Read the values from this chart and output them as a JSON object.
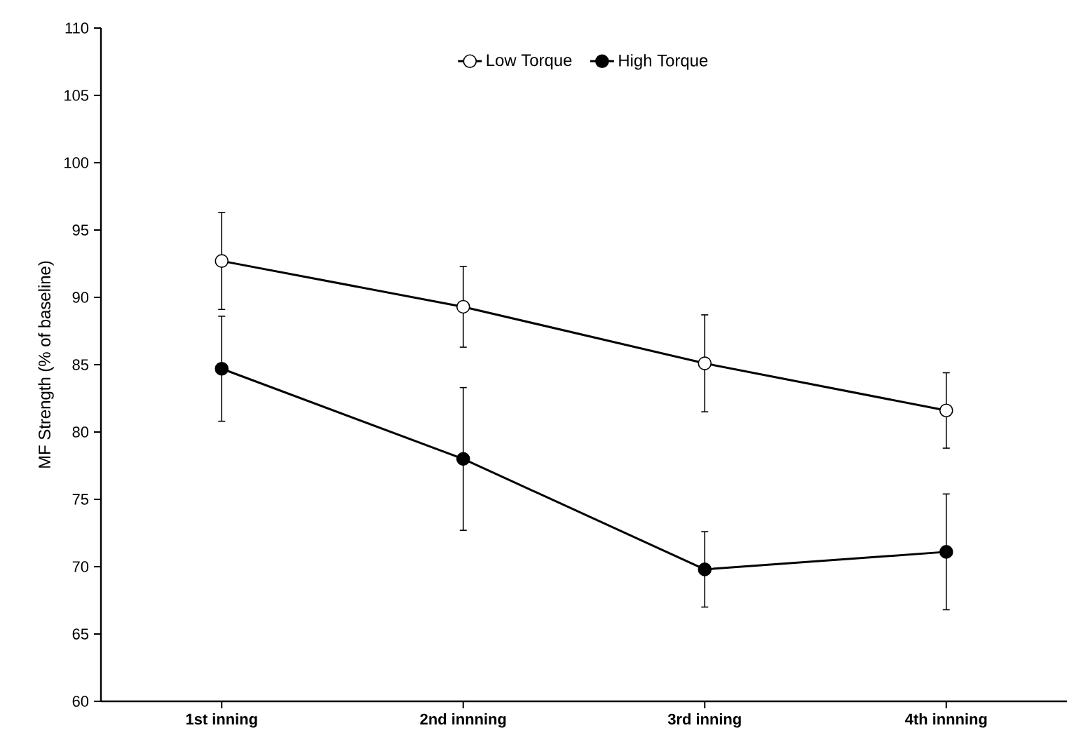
{
  "chart_data": {
    "type": "line",
    "ylabel": "MF Strength (% of baseline)",
    "categories": [
      "1st inning",
      "2nd innning",
      "3rd inning",
      "4th innning"
    ],
    "series": [
      {
        "name": "Low Torque",
        "color": "#ffffff",
        "values": [
          92.7,
          89.3,
          85.1,
          81.6
        ],
        "errors": [
          3.6,
          3.0,
          3.6,
          2.8
        ]
      },
      {
        "name": "High Torque",
        "color": "#000000",
        "values": [
          84.7,
          78.0,
          69.8,
          71.1
        ],
        "errors": [
          3.9,
          5.3,
          2.8,
          4.3
        ]
      }
    ],
    "ylim": [
      60,
      110
    ],
    "yticks": [
      60,
      65,
      70,
      75,
      80,
      85,
      90,
      95,
      100,
      105,
      110
    ],
    "grid": false,
    "legend": "top",
    "marker": "circle",
    "line_style": "solid"
  }
}
